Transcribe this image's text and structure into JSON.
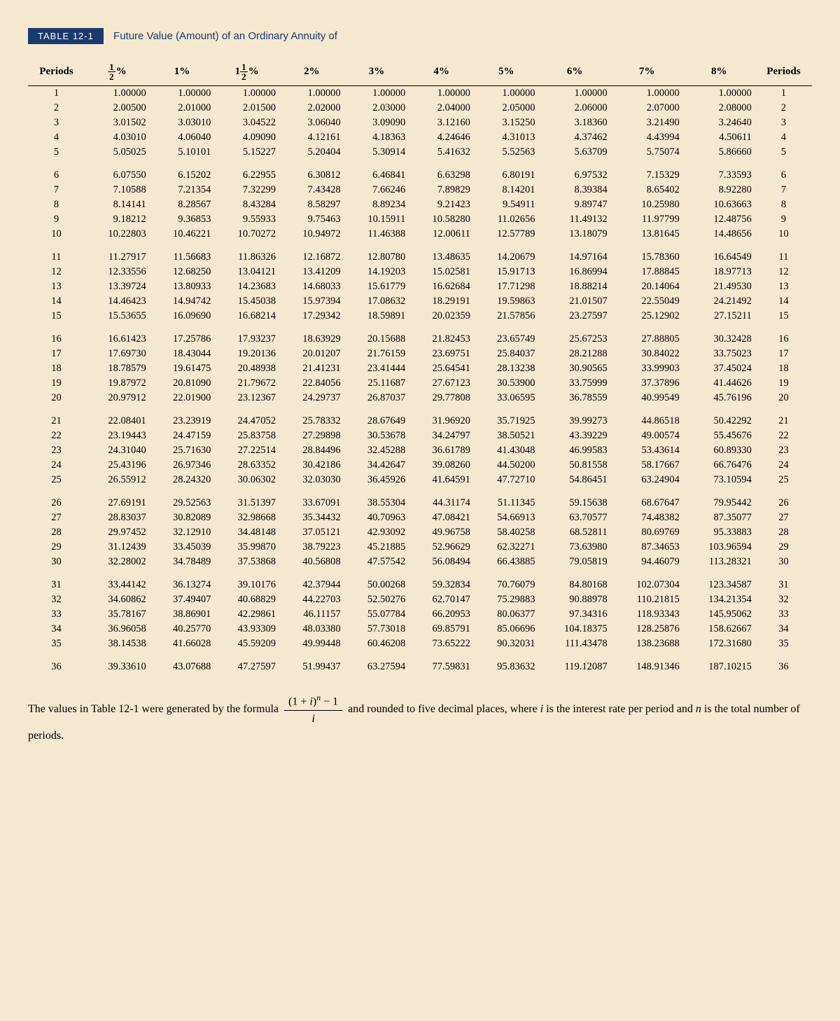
{
  "title_badge": "TABLE 12-1",
  "title_text": "Future Value (Amount) of an Ordinary Annuity of",
  "columns": [
    "Periods",
    "½%",
    "1%",
    "1½%",
    "2%",
    "3%",
    "4%",
    "5%",
    "6%",
    "7%",
    "8%",
    "Periods"
  ],
  "group_size": 5,
  "rows": [
    [
      1,
      "1.00000",
      "1.00000",
      "1.00000",
      "1.00000",
      "1.00000",
      "1.00000",
      "1.00000",
      "1.00000",
      "1.00000",
      "1.00000",
      1
    ],
    [
      2,
      "2.00500",
      "2.01000",
      "2.01500",
      "2.02000",
      "2.03000",
      "2.04000",
      "2.05000",
      "2.06000",
      "2.07000",
      "2.08000",
      2
    ],
    [
      3,
      "3.01502",
      "3.03010",
      "3.04522",
      "3.06040",
      "3.09090",
      "3.12160",
      "3.15250",
      "3.18360",
      "3.21490",
      "3.24640",
      3
    ],
    [
      4,
      "4.03010",
      "4.06040",
      "4.09090",
      "4.12161",
      "4.18363",
      "4.24646",
      "4.31013",
      "4.37462",
      "4.43994",
      "4.50611",
      4
    ],
    [
      5,
      "5.05025",
      "5.10101",
      "5.15227",
      "5.20404",
      "5.30914",
      "5.41632",
      "5.52563",
      "5.63709",
      "5.75074",
      "5.86660",
      5
    ],
    [
      6,
      "6.07550",
      "6.15202",
      "6.22955",
      "6.30812",
      "6.46841",
      "6.63298",
      "6.80191",
      "6.97532",
      "7.15329",
      "7.33593",
      6
    ],
    [
      7,
      "7.10588",
      "7.21354",
      "7.32299",
      "7.43428",
      "7.66246",
      "7.89829",
      "8.14201",
      "8.39384",
      "8.65402",
      "8.92280",
      7
    ],
    [
      8,
      "8.14141",
      "8.28567",
      "8.43284",
      "8.58297",
      "8.89234",
      "9.21423",
      "9.54911",
      "9.89747",
      "10.25980",
      "10.63663",
      8
    ],
    [
      9,
      "9.18212",
      "9.36853",
      "9.55933",
      "9.75463",
      "10.15911",
      "10.58280",
      "11.02656",
      "11.49132",
      "11.97799",
      "12.48756",
      9
    ],
    [
      10,
      "10.22803",
      "10.46221",
      "10.70272",
      "10.94972",
      "11.46388",
      "12.00611",
      "12.57789",
      "13.18079",
      "13.81645",
      "14.48656",
      10
    ],
    [
      11,
      "11.27917",
      "11.56683",
      "11.86326",
      "12.16872",
      "12.80780",
      "13.48635",
      "14.20679",
      "14.97164",
      "15.78360",
      "16.64549",
      11
    ],
    [
      12,
      "12.33556",
      "12.68250",
      "13.04121",
      "13.41209",
      "14.19203",
      "15.02581",
      "15.91713",
      "16.86994",
      "17.88845",
      "18.97713",
      12
    ],
    [
      13,
      "13.39724",
      "13.80933",
      "14.23683",
      "14.68033",
      "15.61779",
      "16.62684",
      "17.71298",
      "18.88214",
      "20.14064",
      "21.49530",
      13
    ],
    [
      14,
      "14.46423",
      "14.94742",
      "15.45038",
      "15.97394",
      "17.08632",
      "18.29191",
      "19.59863",
      "21.01507",
      "22.55049",
      "24.21492",
      14
    ],
    [
      15,
      "15.53655",
      "16.09690",
      "16.68214",
      "17.29342",
      "18.59891",
      "20.02359",
      "21.57856",
      "23.27597",
      "25.12902",
      "27.15211",
      15
    ],
    [
      16,
      "16.61423",
      "17.25786",
      "17.93237",
      "18.63929",
      "20.15688",
      "21.82453",
      "23.65749",
      "25.67253",
      "27.88805",
      "30.32428",
      16
    ],
    [
      17,
      "17.69730",
      "18.43044",
      "19.20136",
      "20.01207",
      "21.76159",
      "23.69751",
      "25.84037",
      "28.21288",
      "30.84022",
      "33.75023",
      17
    ],
    [
      18,
      "18.78579",
      "19.61475",
      "20.48938",
      "21.41231",
      "23.41444",
      "25.64541",
      "28.13238",
      "30.90565",
      "33.99903",
      "37.45024",
      18
    ],
    [
      19,
      "19.87972",
      "20.81090",
      "21.79672",
      "22.84056",
      "25.11687",
      "27.67123",
      "30.53900",
      "33.75999",
      "37.37896",
      "41.44626",
      19
    ],
    [
      20,
      "20.97912",
      "22.01900",
      "23.12367",
      "24.29737",
      "26.87037",
      "29.77808",
      "33.06595",
      "36.78559",
      "40.99549",
      "45.76196",
      20
    ],
    [
      21,
      "22.08401",
      "23.23919",
      "24.47052",
      "25.78332",
      "28.67649",
      "31.96920",
      "35.71925",
      "39.99273",
      "44.86518",
      "50.42292",
      21
    ],
    [
      22,
      "23.19443",
      "24.47159",
      "25.83758",
      "27.29898",
      "30.53678",
      "34.24797",
      "38.50521",
      "43.39229",
      "49.00574",
      "55.45676",
      22
    ],
    [
      23,
      "24.31040",
      "25.71630",
      "27.22514",
      "28.84496",
      "32.45288",
      "36.61789",
      "41.43048",
      "46.99583",
      "53.43614",
      "60.89330",
      23
    ],
    [
      24,
      "25.43196",
      "26.97346",
      "28.63352",
      "30.42186",
      "34.42647",
      "39.08260",
      "44.50200",
      "50.81558",
      "58.17667",
      "66.76476",
      24
    ],
    [
      25,
      "26.55912",
      "28.24320",
      "30.06302",
      "32.03030",
      "36.45926",
      "41.64591",
      "47.72710",
      "54.86451",
      "63.24904",
      "73.10594",
      25
    ],
    [
      26,
      "27.69191",
      "29.52563",
      "31.51397",
      "33.67091",
      "38.55304",
      "44.31174",
      "51.11345",
      "59.15638",
      "68.67647",
      "79.95442",
      26
    ],
    [
      27,
      "28.83037",
      "30.82089",
      "32.98668",
      "35.34432",
      "40.70963",
      "47.08421",
      "54.66913",
      "63.70577",
      "74.48382",
      "87.35077",
      27
    ],
    [
      28,
      "29.97452",
      "32.12910",
      "34.48148",
      "37.05121",
      "42.93092",
      "49.96758",
      "58.40258",
      "68.52811",
      "80.69769",
      "95.33883",
      28
    ],
    [
      29,
      "31.12439",
      "33.45039",
      "35.99870",
      "38.79223",
      "45.21885",
      "52.96629",
      "62.32271",
      "73.63980",
      "87.34653",
      "103.96594",
      29
    ],
    [
      30,
      "32.28002",
      "34.78489",
      "37.53868",
      "40.56808",
      "47.57542",
      "56.08494",
      "66.43885",
      "79.05819",
      "94.46079",
      "113.28321",
      30
    ],
    [
      31,
      "33.44142",
      "36.13274",
      "39.10176",
      "42.37944",
      "50.00268",
      "59.32834",
      "70.76079",
      "84.80168",
      "102.07304",
      "123.34587",
      31
    ],
    [
      32,
      "34.60862",
      "37.49407",
      "40.68829",
      "44.22703",
      "52.50276",
      "62.70147",
      "75.29883",
      "90.88978",
      "110.21815",
      "134.21354",
      32
    ],
    [
      33,
      "35.78167",
      "38.86901",
      "42.29861",
      "46.11157",
      "55.07784",
      "66.20953",
      "80.06377",
      "97.34316",
      "118.93343",
      "145.95062",
      33
    ],
    [
      34,
      "36.96058",
      "40.25770",
      "43.93309",
      "48.03380",
      "57.73018",
      "69.85791",
      "85.06696",
      "104.18375",
      "128.25876",
      "158.62667",
      34
    ],
    [
      35,
      "38.14538",
      "41.66028",
      "45.59209",
      "49.99448",
      "60.46208",
      "73.65222",
      "90.32031",
      "111.43478",
      "138.23688",
      "172.31680",
      35
    ],
    [
      36,
      "39.33610",
      "43.07688",
      "47.27597",
      "51.99437",
      "63.27594",
      "77.59831",
      "95.83632",
      "119.12087",
      "148.91346",
      "187.10215",
      36
    ]
  ],
  "note_prefix": "The values in Table 12-1 were generated by the formula",
  "note_suffix": "and rounded to five decimal places, where i is the interest rate per period and n is the total number of periods.",
  "formula_num": "(1 + i)ⁿ − 1",
  "formula_den": "i",
  "colors": {
    "background": "#f4e8d0",
    "badge_bg": "#1a3a6e",
    "badge_text": "#ffffff",
    "title_text": "#1a3a6e",
    "text": "#000000"
  }
}
